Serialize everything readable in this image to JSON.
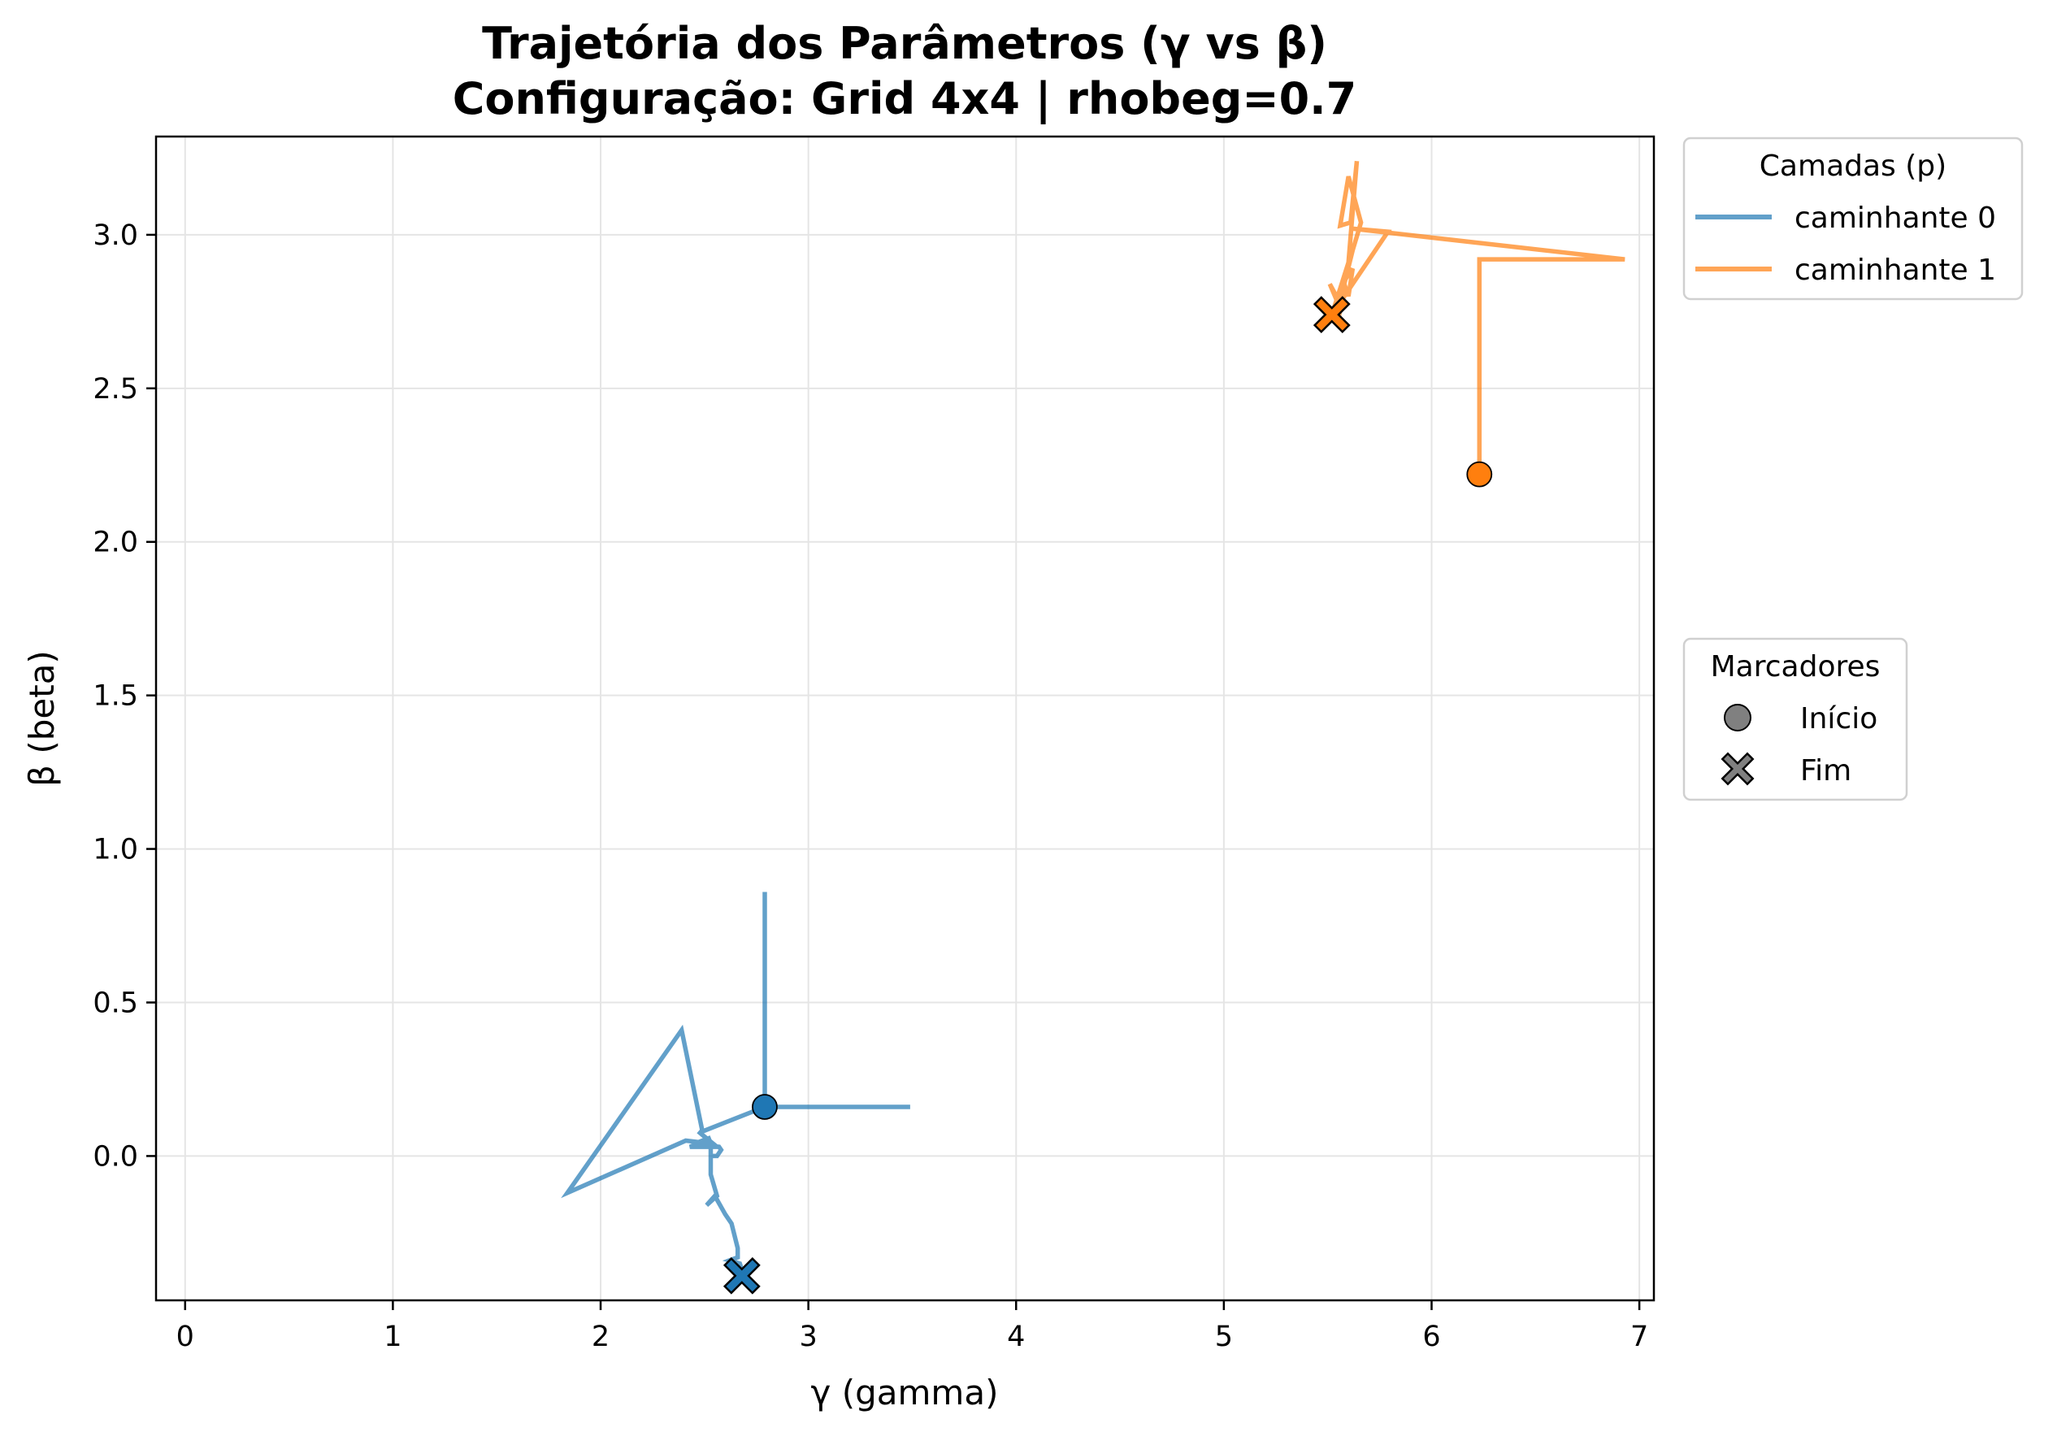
{
  "chart_data": {
    "type": "line",
    "title": "Trajetória dos Parâmetros (γ vs β)",
    "subtitle": "Configuração: Grid 4x4 | rhobeg=0.7",
    "xlabel": "γ (gamma)",
    "ylabel": "β (beta)",
    "xlim": [
      -0.14,
      7.07
    ],
    "ylim": [
      -0.47,
      3.32
    ],
    "xticks": [
      0,
      1,
      2,
      3,
      4,
      5,
      6,
      7
    ],
    "xtick_labels": [
      "0",
      "1",
      "2",
      "3",
      "4",
      "5",
      "6",
      "7"
    ],
    "yticks": [
      0.0,
      0.5,
      1.0,
      1.5,
      2.0,
      2.5,
      3.0
    ],
    "ytick_labels": [
      "0.0",
      "0.5",
      "1.0",
      "1.5",
      "2.0",
      "2.5",
      "3.0"
    ],
    "grid": true,
    "legend_placement": "outside-right",
    "legend_title": "Camadas (p)",
    "markers_legend_title": "Marcadores",
    "markers_legend": [
      {
        "label": "Início",
        "marker": "circle"
      },
      {
        "label": "Fim",
        "marker": "x"
      }
    ],
    "series": [
      {
        "name": "caminhante 0",
        "color": "#1f77b4",
        "x": [
          2.79,
          2.79,
          2.79,
          2.79,
          3.49,
          2.79,
          2.49,
          2.39,
          1.84,
          2.41,
          2.54,
          2.47,
          2.56,
          2.43,
          2.53,
          2.45,
          2.57,
          2.58,
          2.56,
          2.53,
          2.53,
          2.53,
          2.56,
          2.51,
          2.55,
          2.6,
          2.63,
          2.66,
          2.66,
          2.62,
          2.67,
          2.68,
          2.68
        ],
        "y": [
          0.16,
          0.86,
          0.8,
          0.16,
          0.16,
          0.16,
          0.08,
          0.41,
          -0.12,
          0.05,
          0.04,
          0.08,
          0.03,
          0.03,
          0.06,
          0.04,
          0.03,
          0.02,
          0.0,
          0.0,
          0.04,
          -0.06,
          -0.13,
          -0.16,
          -0.13,
          -0.19,
          -0.22,
          -0.3,
          -0.33,
          -0.34,
          -0.35,
          -0.37,
          -0.39
        ],
        "start": [
          2.79,
          0.16
        ],
        "end": [
          2.68,
          -0.39
        ]
      },
      {
        "name": "caminhante 1",
        "color": "#ff7f0e",
        "x": [
          6.23,
          6.23,
          6.93,
          5.62,
          5.79,
          5.52,
          5.6,
          5.64,
          5.61,
          5.56,
          5.6,
          5.66,
          5.62,
          5.58,
          5.6,
          5.62,
          5.58,
          5.56,
          5.51,
          5.55,
          5.52
        ],
        "y": [
          2.22,
          2.92,
          2.92,
          3.02,
          3.01,
          2.74,
          2.91,
          3.24,
          3.04,
          3.03,
          3.19,
          3.04,
          2.95,
          2.84,
          2.8,
          2.89,
          2.85,
          2.76,
          2.84,
          2.79,
          2.74
        ],
        "start": [
          6.23,
          2.22
        ],
        "end": [
          5.52,
          2.74
        ]
      }
    ]
  }
}
